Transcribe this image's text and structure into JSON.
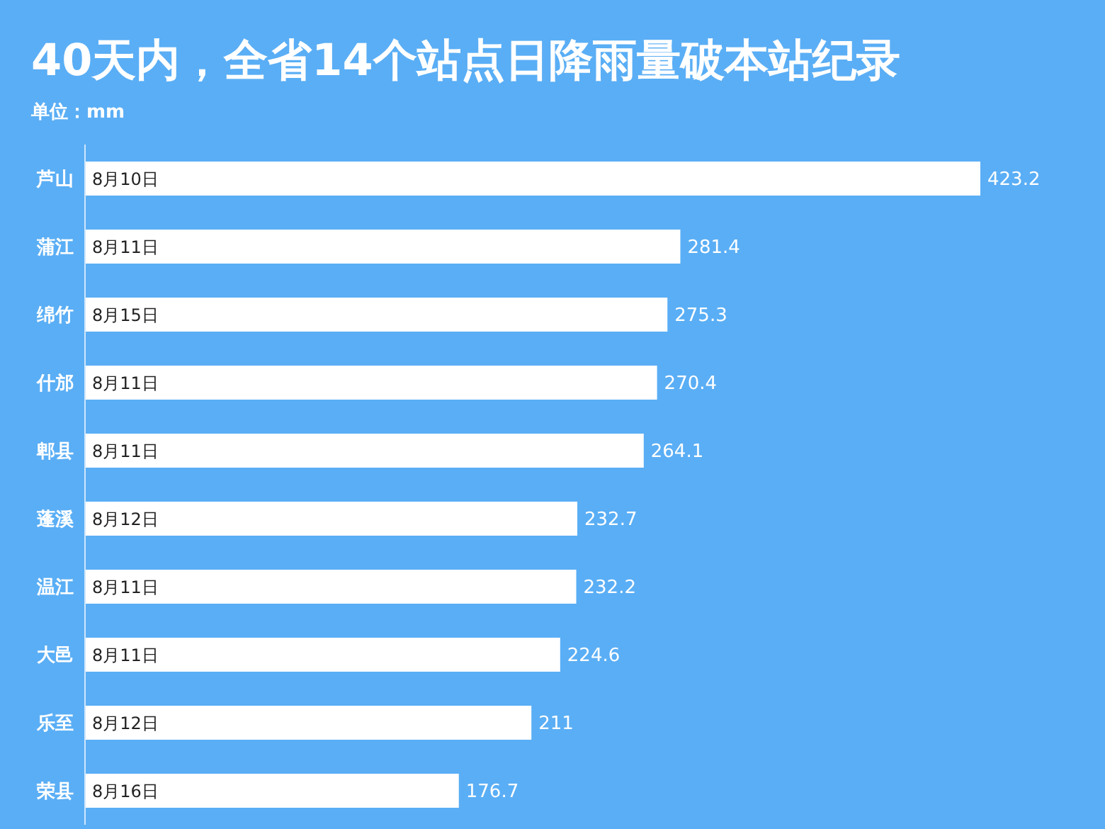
{
  "chart_data": {
    "type": "bar",
    "orientation": "horizontal",
    "title": "40天内，全省14个站点日降雨量破本站纪录",
    "subtitle": "单位：mm",
    "categories": [
      "芦山",
      "蒲江",
      "绵竹",
      "什邡",
      "郫县",
      "蓬溪",
      "温江",
      "大邑",
      "乐至",
      "荣县"
    ],
    "values": [
      423.2,
      281.4,
      275.3,
      270.4,
      264.1,
      232.7,
      232.2,
      224.6,
      211,
      176.7
    ],
    "color": "#ffffff",
    "data_labels": true,
    "annotations": [
      "8月10日",
      "8月11日",
      "8月15日",
      "8月11日",
      "8月11日",
      "8月12日",
      "8月11日",
      "8月11日",
      "8月12日",
      "8月16日"
    ]
  }
}
